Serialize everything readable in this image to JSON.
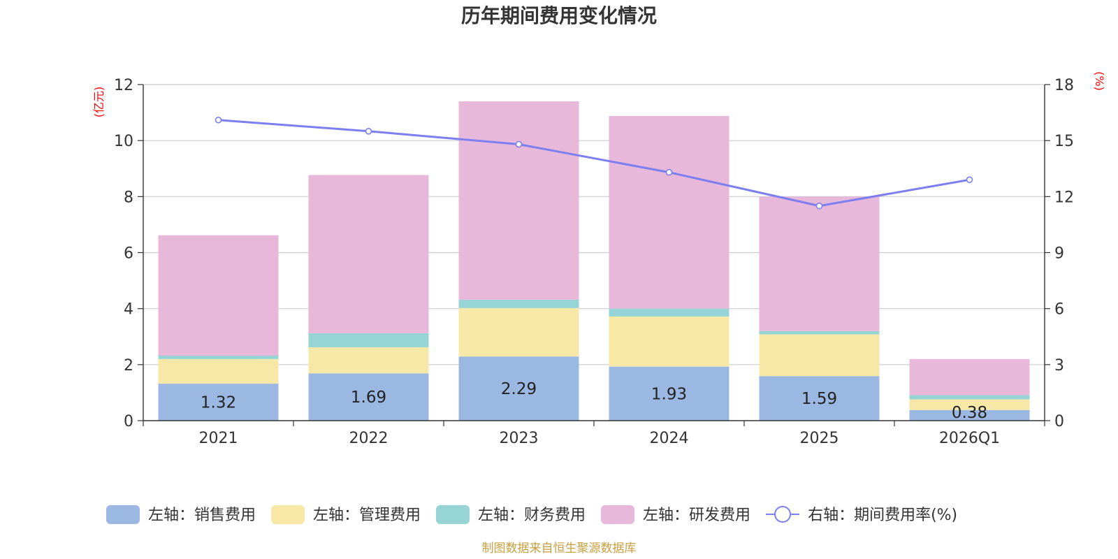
{
  "chart_data": {
    "type": "bar",
    "stacked": true,
    "title": "历年期间费用变化情况",
    "categories": [
      "2021",
      "2022",
      "2023",
      "2024",
      "2025",
      "2026Q1"
    ],
    "series": [
      {
        "name": "左轴：销售费用",
        "axis": "left",
        "color": "#9bb8e3",
        "values": [
          1.32,
          1.69,
          2.29,
          1.93,
          1.59,
          0.38
        ],
        "labels": [
          "1.32",
          "1.69",
          "2.29",
          "1.93",
          "1.59",
          "0.38"
        ]
      },
      {
        "name": "左轴：管理费用",
        "axis": "left",
        "color": "#f8e8a8",
        "values": [
          0.88,
          0.93,
          1.73,
          1.79,
          1.49,
          0.38
        ]
      },
      {
        "name": "左轴：财务费用",
        "axis": "left",
        "color": "#96d4d6",
        "values": [
          0.12,
          0.5,
          0.3,
          0.28,
          0.12,
          0.15
        ]
      },
      {
        "name": "左轴：研发费用",
        "axis": "left",
        "color": "#e8b8da",
        "values": [
          4.3,
          5.65,
          7.08,
          6.88,
          4.8,
          1.29
        ]
      },
      {
        "name": "右轴：期间费用率(%)",
        "axis": "right",
        "type": "line",
        "color": "#7b7ff0",
        "values": [
          16.1,
          15.5,
          14.8,
          13.3,
          11.5,
          12.9
        ]
      }
    ],
    "y_left": {
      "label": "(亿元)",
      "ticks": [
        "0",
        "2",
        "4",
        "6",
        "8",
        "10",
        "12"
      ],
      "min": 0,
      "max": 12
    },
    "y_right": {
      "label": "(%)",
      "ticks": [
        "0",
        "3",
        "6",
        "9",
        "12",
        "15",
        "18"
      ],
      "min": 0,
      "max": 18
    },
    "grid": true,
    "legend_position": "bottom"
  },
  "source": "制图数据来自恒生聚源数据库"
}
